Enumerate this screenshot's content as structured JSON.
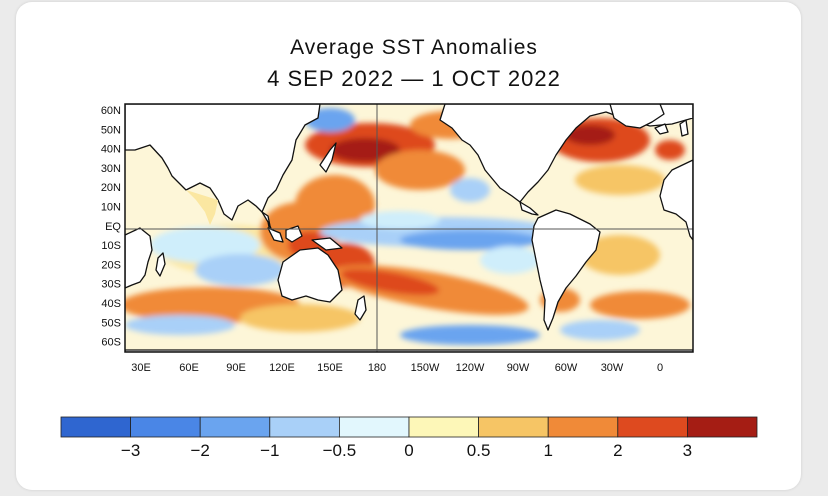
{
  "title": "Average SST Anomalies",
  "subtitle": "4 SEP 2022 — 1 OCT 2022",
  "lat_labels": [
    "60N",
    "50N",
    "40N",
    "30N",
    "20N",
    "10N",
    "EQ",
    "10S",
    "20S",
    "30S",
    "40S",
    "50S",
    "60S"
  ],
  "lon_labels": [
    "30E",
    "60E",
    "90E",
    "120E",
    "150E",
    "180",
    "150W",
    "120W",
    "90W",
    "60W",
    "30W",
    "0"
  ],
  "colorbar": {
    "colors": [
      "#2f66d0",
      "#4a86e6",
      "#6aa4ef",
      "#a9d0f8",
      "#e2f7fd",
      "#fdf7b8",
      "#f6c565",
      "#f08a38",
      "#de4a1f",
      "#a51d14"
    ],
    "labels": [
      "−3",
      "−2",
      "−1",
      "−0.5",
      "0",
      "0.5",
      "1",
      "2",
      "3"
    ]
  },
  "colors": {
    "land": "#ffffff",
    "ocean_neutral": "#fdf6d8"
  }
}
